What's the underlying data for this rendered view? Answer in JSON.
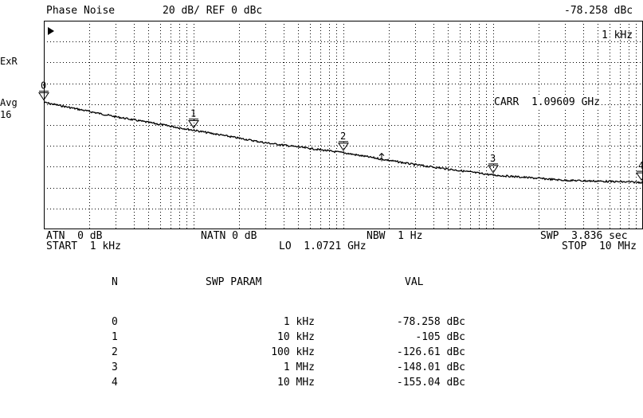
{
  "screen": {
    "header": {
      "title": "Phase Noise",
      "scale": "20 dB/ REF 0 dBc",
      "marker_value": "-78.258 dBc",
      "marker_freq": "1 kHz"
    },
    "side": {
      "exr": "ExR",
      "avg": "Avg",
      "avg_count": "16"
    },
    "carrier": "CARR  1.09609 GHz",
    "footer": {
      "atn": "ATN  0 dB",
      "natn": "NATN 0 dB",
      "nbw": "NBW  1 Hz",
      "swp": "SWP  3.836 sec",
      "start": "START  1 kHz",
      "lo": "LO  1.0721 GHz",
      "stop": "STOP  10 MHz"
    },
    "markers": [
      {
        "label": "0",
        "freq_hz": 1000,
        "level_dbc": -78.258
      },
      {
        "label": "1",
        "freq_hz": 10000,
        "level_dbc": -105
      },
      {
        "label": "2",
        "freq_hz": 100000,
        "level_dbc": -126.61
      },
      {
        "label": "3",
        "freq_hz": 1000000,
        "level_dbc": -148.01
      },
      {
        "label": "4",
        "freq_hz": 10000000,
        "level_dbc": -155.04
      }
    ],
    "table": {
      "headers": {
        "n": "N",
        "param": "SWP PARAM",
        "val": "VAL"
      },
      "rows": [
        {
          "n": "0",
          "param": "1 kHz",
          "val": "-78.258 dBc"
        },
        {
          "n": "1",
          "param": "10 kHz",
          "val": "-105 dBc"
        },
        {
          "n": "2",
          "param": "100 kHz",
          "val": "-126.61 dBc"
        },
        {
          "n": "3",
          "param": "1 MHz",
          "val": "-148.01 dBc"
        },
        {
          "n": "4",
          "param": "10 MHz",
          "val": "-155.04 dBc"
        }
      ]
    }
  },
  "chart_data": {
    "type": "line",
    "xscale": "log",
    "xlim_hz": [
      1000,
      10000000
    ],
    "ref_dbc": 0,
    "db_per_div": 20,
    "divisions_y": 10,
    "grid": true,
    "series": [
      {
        "x_hz": [
          1000,
          3000,
          10000,
          30000,
          100000,
          300000,
          1000000,
          3000000,
          10000000
        ],
        "y_dbc": [
          -78.258,
          -92,
          -105,
          -117,
          -126.61,
          -138,
          -148.01,
          -153,
          -155.04
        ]
      }
    ]
  }
}
